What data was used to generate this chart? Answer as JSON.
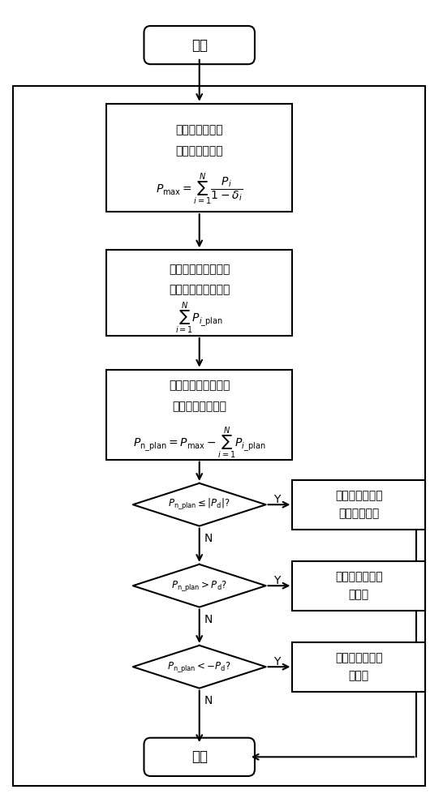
{
  "bg_color": "#ffffff",
  "border_color": "#000000",
  "text_color": "#000000",
  "fig_width": 5.46,
  "fig_height": 10.0,
  "start_end_text_start": "开始",
  "start_end_text_end": "结束",
  "box1_line1": "计算电网允许最",
  "box1_line2": "大光伏发电出力",
  "box1_formula": "$P_{\\mathrm{max}}=\\sum_{i=1}^{N}\\dfrac{P_i}{1-\\delta_i}$",
  "box2_line1": "计算所有光伏电站期",
  "box2_line2": "望出力与计划值之和",
  "box2_formula": "$\\sum_{i=1}^{N}P_{i\\_\\mathrm{plan}}$",
  "box3_line1": "计算需要调整的光伏",
  "box3_line2": "发电计划出力总量",
  "box3_formula": "$P_{\\mathrm{n\\_plan}}=P_{\\mathrm{max}}-\\sum_{i=1}^{N}P_{i\\_\\mathrm{plan}}$",
  "diamond1_text": "$P_{\\mathrm{n\\_plan}}\\leq|P_{\\mathrm{d}}|$?",
  "diamond2_text": "$P_{\\mathrm{n\\_plan}}>P_{\\mathrm{d}}$?",
  "diamond3_text": "$P_{\\mathrm{n\\_plan}}<-P_{\\mathrm{d}}$?",
  "right_box1_line1": "不需要调整光伏",
  "right_box1_line2": "电站出力计划",
  "right_box2_line1": "增加光伏电站出",
  "right_box2_line2": "力计划",
  "right_box3_line1": "减少光伏电站出",
  "right_box3_line2": "力计划",
  "yes_label": "Y",
  "no_label": "N"
}
